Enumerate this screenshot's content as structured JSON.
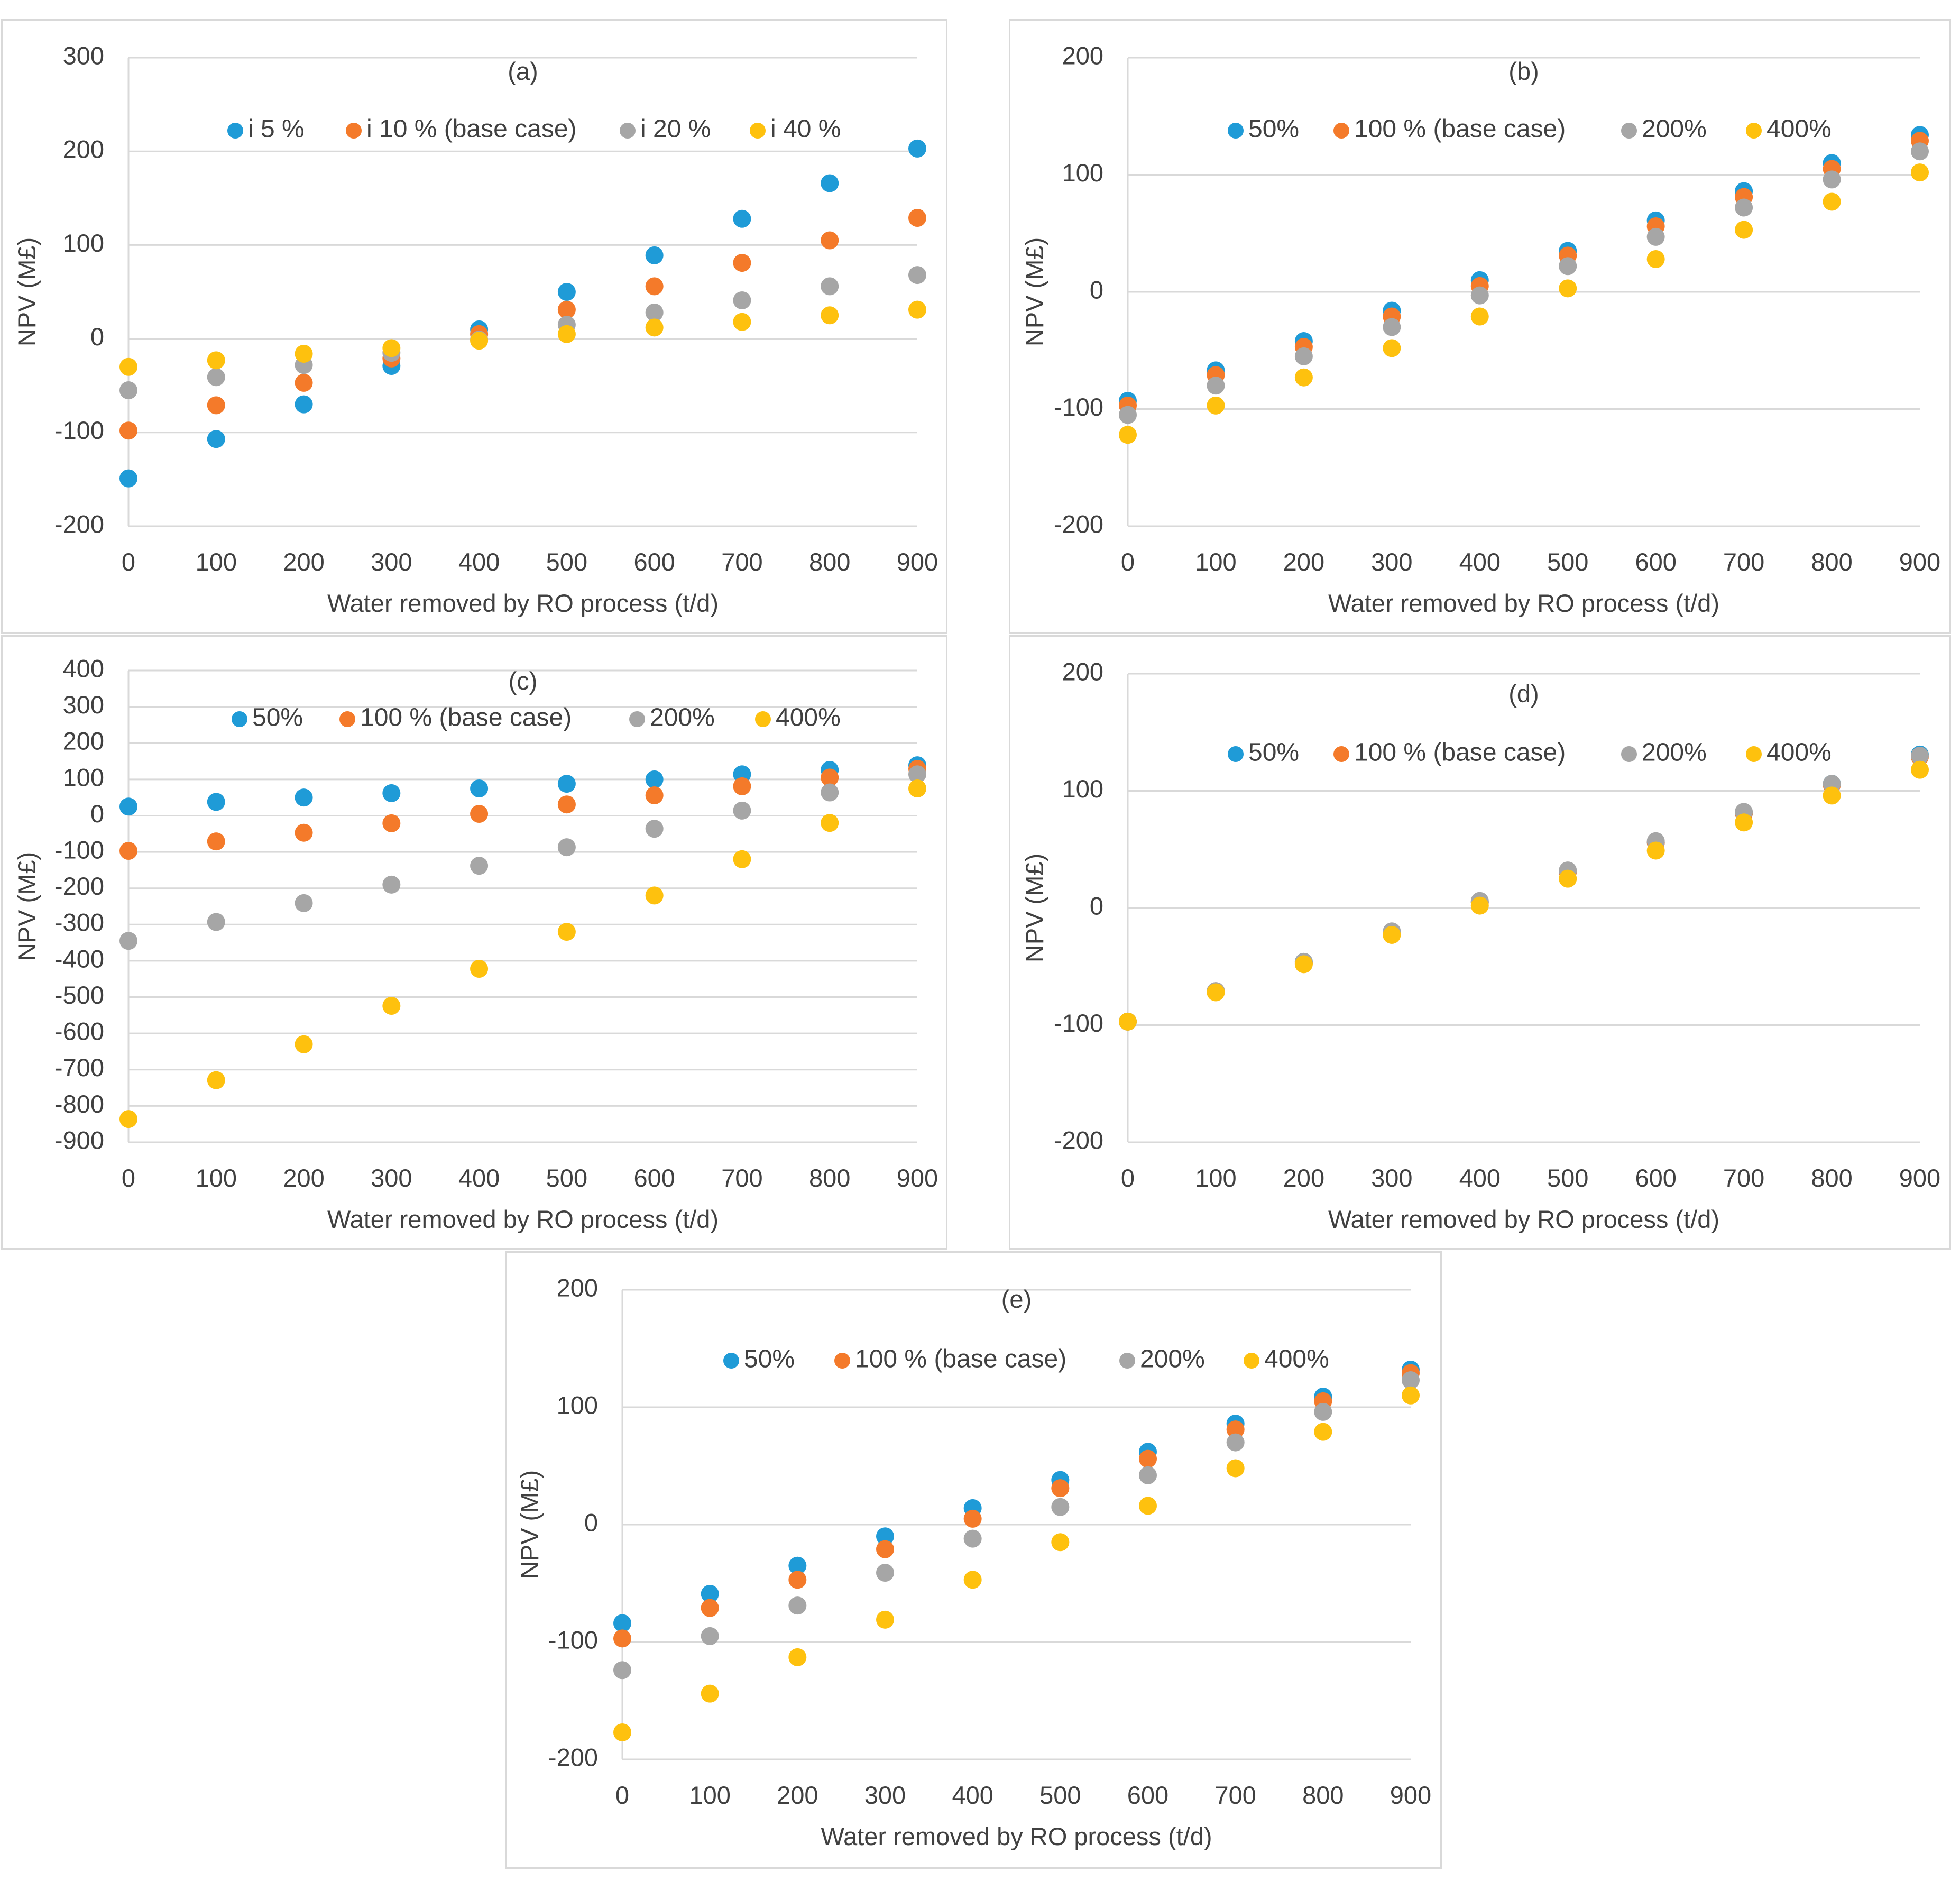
{
  "chart_data": [
    {
      "id": "a",
      "type": "scatter",
      "title": "(a)",
      "xlabel": "Water removed by RO process (t/d)",
      "ylabel": "NPV (M£)",
      "x": [
        0,
        100,
        200,
        300,
        400,
        500,
        600,
        700,
        800,
        900
      ],
      "xticks": [
        "0",
        "100",
        "200",
        "300",
        "400",
        "500",
        "600",
        "700",
        "800",
        "900"
      ],
      "ylim": [
        -200,
        300
      ],
      "yticks": [
        "300",
        "200",
        "100",
        "0",
        "-100",
        "-200"
      ],
      "yticks_values": [
        300,
        200,
        100,
        0,
        -100,
        -200
      ],
      "legend_position": "top",
      "series": [
        {
          "name": "i 5 %",
          "color": "#1f9bd7",
          "values": [
            -149,
            -107,
            -70,
            -29,
            10,
            50,
            89,
            128,
            166,
            203
          ]
        },
        {
          "name": "i 10 % (base case)",
          "color": "#f47a2a",
          "values": [
            -98,
            -71,
            -47,
            -21,
            5,
            31,
            56,
            81,
            105,
            129
          ]
        },
        {
          "name": "i 20 %",
          "color": "#a6a6a6",
          "values": [
            -55,
            -41,
            -28,
            -15,
            -1,
            15,
            28,
            41,
            56,
            68
          ]
        },
        {
          "name": "i 40 %",
          "color": "#fec10e",
          "values": [
            -30,
            -23,
            -16,
            -10,
            -2,
            5,
            12,
            18,
            25,
            31
          ]
        }
      ]
    },
    {
      "id": "b",
      "type": "scatter",
      "title": "(b)",
      "xlabel": "Water removed by RO process (t/d)",
      "ylabel": "NPV (M£)",
      "x": [
        0,
        100,
        200,
        300,
        400,
        500,
        600,
        700,
        800,
        900
      ],
      "xticks": [
        "0",
        "100",
        "200",
        "300",
        "400",
        "500",
        "600",
        "700",
        "800",
        "900"
      ],
      "ylim": [
        -200,
        200
      ],
      "yticks": [
        "200",
        "100",
        "0",
        "-100",
        "-200"
      ],
      "yticks_values": [
        200,
        100,
        0,
        -100,
        -200
      ],
      "legend_position": "top",
      "series": [
        {
          "name": "50%",
          "color": "#1f9bd7",
          "values": [
            -93,
            -67,
            -42,
            -16,
            10,
            35,
            61,
            86,
            110,
            134
          ]
        },
        {
          "name": "100 % (base case)",
          "color": "#f47a2a",
          "values": [
            -97,
            -71,
            -47,
            -21,
            5,
            31,
            56,
            81,
            105,
            129
          ]
        },
        {
          "name": "200%",
          "color": "#a6a6a6",
          "values": [
            -105,
            -80,
            -55,
            -30,
            -3,
            22,
            47,
            72,
            96,
            120
          ]
        },
        {
          "name": "400%",
          "color": "#fec10e",
          "values": [
            -122,
            -97,
            -73,
            -48,
            -21,
            3,
            28,
            53,
            77,
            102
          ]
        }
      ]
    },
    {
      "id": "c",
      "type": "scatter",
      "title": "(c)",
      "xlabel": "Water removed by RO process (t/d)",
      "ylabel": "NPV (M£)",
      "x": [
        0,
        100,
        200,
        300,
        400,
        500,
        600,
        700,
        800,
        900
      ],
      "xticks": [
        "0",
        "100",
        "200",
        "300",
        "400",
        "500",
        "600",
        "700",
        "800",
        "900"
      ],
      "ylim": [
        -900,
        400
      ],
      "yticks": [
        "400",
        "300",
        "200",
        "100",
        "0",
        "-100",
        "-200",
        "-300",
        "-400",
        "-500",
        "-600",
        "-700",
        "-800",
        "-900"
      ],
      "yticks_values": [
        400,
        300,
        200,
        100,
        0,
        -100,
        -200,
        -300,
        -400,
        -500,
        -600,
        -700,
        -800,
        -900
      ],
      "legend_position": "top",
      "series": [
        {
          "name": "50%",
          "color": "#1f9bd7",
          "values": [
            25,
            38,
            50,
            62,
            75,
            88,
            100,
            114,
            126,
            139
          ]
        },
        {
          "name": "100 % (base case)",
          "color": "#f47a2a",
          "values": [
            -97,
            -71,
            -47,
            -21,
            5,
            31,
            56,
            81,
            105,
            129
          ]
        },
        {
          "name": "200%",
          "color": "#a6a6a6",
          "values": [
            -345,
            -293,
            -241,
            -190,
            -138,
            -87,
            -36,
            14,
            64,
            114
          ]
        },
        {
          "name": "400%",
          "color": "#fec10e",
          "values": [
            -836,
            -729,
            -630,
            -524,
            -422,
            -320,
            -220,
            -120,
            -20,
            75
          ]
        }
      ]
    },
    {
      "id": "d",
      "type": "scatter",
      "title": "(d)",
      "xlabel": "Water removed by RO process (t/d)",
      "ylabel": "NPV (M£)",
      "x": [
        0,
        100,
        200,
        300,
        400,
        500,
        600,
        700,
        800,
        900
      ],
      "xticks": [
        "0",
        "100",
        "200",
        "300",
        "400",
        "500",
        "600",
        "700",
        "800",
        "900"
      ],
      "ylim": [
        -200,
        200
      ],
      "yticks": [
        "200",
        "100",
        "0",
        "-100",
        "-200"
      ],
      "yticks_values": [
        200,
        100,
        0,
        -100,
        -200
      ],
      "legend_position": "top",
      "series": [
        {
          "name": "50%",
          "color": "#1f9bd7",
          "values": [
            -97,
            -71,
            -46,
            -21,
            5,
            31,
            56,
            81,
            106,
            131
          ]
        },
        {
          "name": "100 % (base case)",
          "color": "#f47a2a",
          "values": [
            -97,
            -71,
            -47,
            -21,
            5,
            31,
            56,
            81,
            105,
            129
          ]
        },
        {
          "name": "200%",
          "color": "#a6a6a6",
          "values": [
            -97,
            -71,
            -46,
            -20,
            6,
            32,
            57,
            82,
            106,
            130
          ]
        },
        {
          "name": "400%",
          "color": "#fec10e",
          "values": [
            -97,
            -72,
            -48,
            -23,
            2,
            25,
            49,
            73,
            96,
            118
          ]
        }
      ]
    },
    {
      "id": "e",
      "type": "scatter",
      "title": "(e)",
      "xlabel": "Water removed by RO process (t/d)",
      "ylabel": "NPV (M£)",
      "x": [
        0,
        100,
        200,
        300,
        400,
        500,
        600,
        700,
        800,
        900
      ],
      "xticks": [
        "0",
        "100",
        "200",
        "300",
        "400",
        "500",
        "600",
        "700",
        "800",
        "900"
      ],
      "ylim": [
        -200,
        200
      ],
      "yticks": [
        "200",
        "100",
        "0",
        "-100",
        "-200"
      ],
      "yticks_values": [
        200,
        100,
        0,
        -100,
        -200
      ],
      "legend_position": "top",
      "series": [
        {
          "name": "50%",
          "color": "#1f9bd7",
          "values": [
            -84,
            -59,
            -35,
            -10,
            14,
            38,
            62,
            86,
            109,
            132
          ]
        },
        {
          "name": "100 % (base case)",
          "color": "#f47a2a",
          "values": [
            -97,
            -71,
            -47,
            -21,
            5,
            31,
            56,
            81,
            105,
            129
          ]
        },
        {
          "name": "200%",
          "color": "#a6a6a6",
          "values": [
            -124,
            -95,
            -69,
            -41,
            -12,
            15,
            42,
            70,
            96,
            123
          ]
        },
        {
          "name": "400%",
          "color": "#fec10e",
          "values": [
            -177,
            -144,
            -113,
            -81,
            -47,
            -15,
            16,
            48,
            79,
            110
          ]
        }
      ]
    }
  ]
}
